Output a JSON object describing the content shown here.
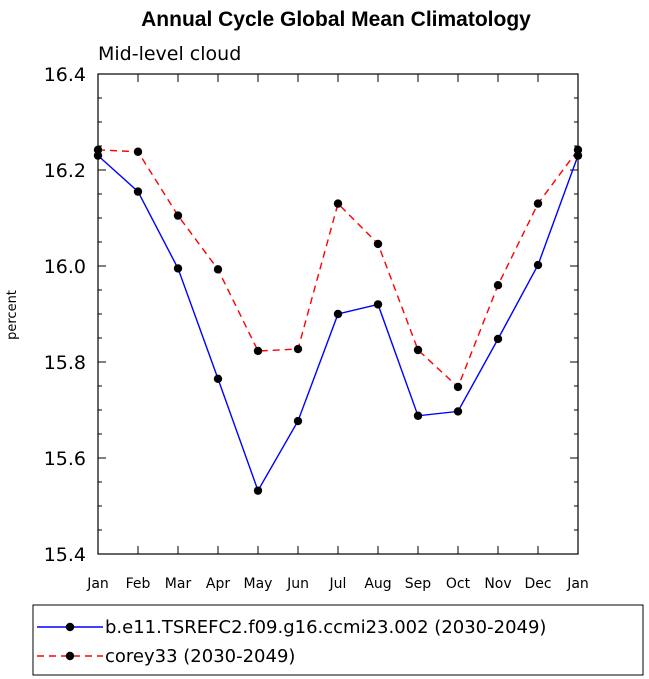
{
  "chart_data": {
    "type": "line",
    "title": "Annual Cycle Global Mean Climatology",
    "subtitle": "Mid-level cloud",
    "ylabel": "percent",
    "xlabel": "",
    "categories": [
      "Jan",
      "Feb",
      "Mar",
      "Apr",
      "May",
      "Jun",
      "Jul",
      "Aug",
      "Sep",
      "Oct",
      "Nov",
      "Dec",
      "Jan"
    ],
    "ylim": [
      15.4,
      16.4
    ],
    "yticks": [
      "15.4",
      "15.6",
      "15.8",
      "16.0",
      "16.2",
      "16.4"
    ],
    "grid": false,
    "legend_position": "bottom",
    "series": [
      {
        "name": "b.e11.TSREFC2.f09.g16.ccmi23.002 (2030-2049)",
        "color": "#0000ff",
        "dash": "solid",
        "marker": "filled-circle",
        "values": [
          16.23,
          16.155,
          15.995,
          15.765,
          15.532,
          15.677,
          15.9,
          15.92,
          15.688,
          15.697,
          15.848,
          16.002,
          16.23
        ]
      },
      {
        "name": "corey33 (2030-2049)",
        "color": "#ff0000",
        "dash": "dashed",
        "marker": "filled-circle",
        "values": [
          16.242,
          16.238,
          16.105,
          15.993,
          15.823,
          15.827,
          16.13,
          16.046,
          15.825,
          15.748,
          15.96,
          16.13,
          16.242
        ]
      }
    ]
  }
}
